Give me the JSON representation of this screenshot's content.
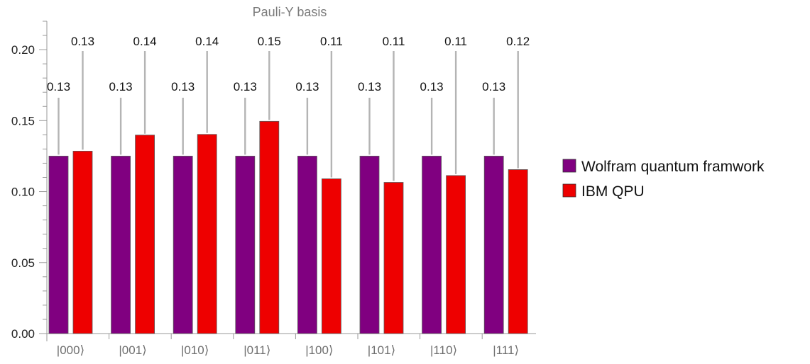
{
  "chart_data": {
    "type": "bar",
    "title": "Pauli-Y basis",
    "xlabel": "",
    "ylabel": "",
    "categories": [
      "|000⟩",
      "|001⟩",
      "|010⟩",
      "|011⟩",
      "|100⟩",
      "|101⟩",
      "|110⟩",
      "|111⟩"
    ],
    "series": [
      {
        "name": "Wolfram quantum framwork",
        "color": "#800080",
        "values": [
          0.125,
          0.125,
          0.125,
          0.125,
          0.125,
          0.125,
          0.125,
          0.125
        ],
        "labels": [
          "0.13",
          "0.13",
          "0.13",
          "0.13",
          "0.13",
          "0.13",
          "0.13",
          "0.13"
        ]
      },
      {
        "name": "IBM QPU",
        "color": "#ee0000",
        "values": [
          0.1285,
          0.1398,
          0.1403,
          0.1495,
          0.109,
          0.1065,
          0.1113,
          0.1155
        ],
        "labels": [
          "0.13",
          "0.14",
          "0.14",
          "0.15",
          "0.11",
          "0.11",
          "0.11",
          "0.12"
        ]
      }
    ],
    "ylim": [
      0,
      0.22
    ],
    "yticks": [
      "0.00",
      "0.05",
      "0.10",
      "0.15",
      "0.20"
    ],
    "ytick_values": [
      0,
      0.05,
      0.1,
      0.15,
      0.2
    ],
    "grid": false,
    "legend_position": "right"
  }
}
